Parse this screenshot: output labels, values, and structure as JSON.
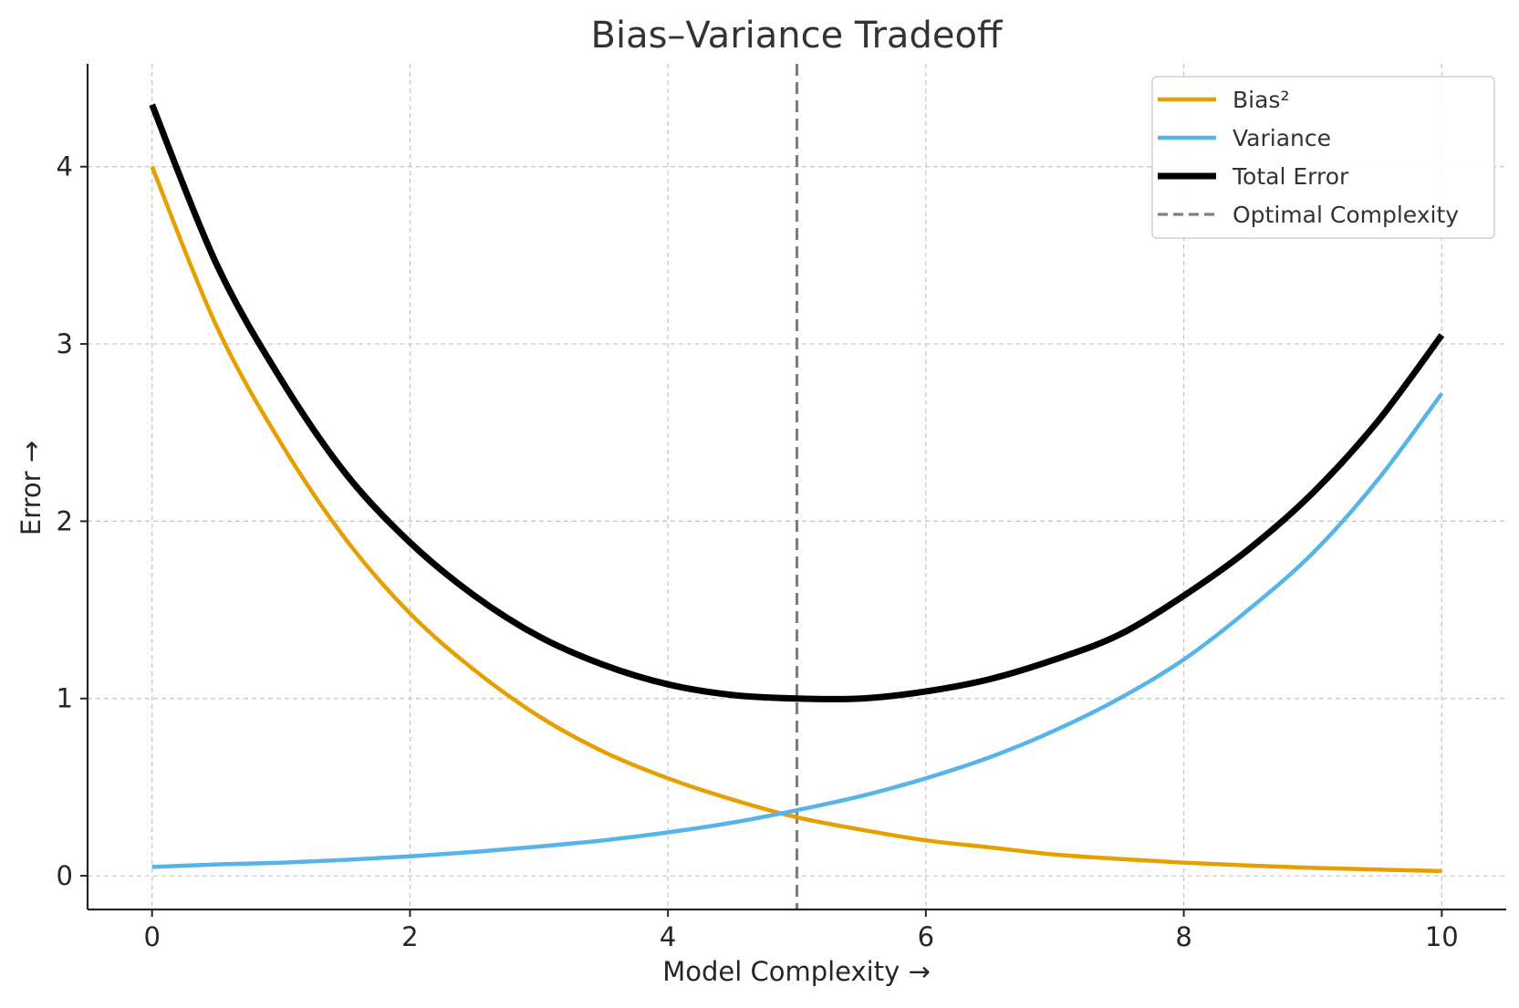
{
  "chart_data": {
    "type": "line",
    "title": "Bias–Variance Tradeoff",
    "xlabel": "Model Complexity →",
    "ylabel": "Error →",
    "xlim": [
      -0.5,
      10.5
    ],
    "ylim": [
      -0.19,
      4.58
    ],
    "xticks": [
      0,
      2,
      4,
      6,
      8,
      10
    ],
    "yticks": [
      0,
      1,
      2,
      3,
      4
    ],
    "grid": true,
    "legend_position": "top-right",
    "x": [
      0,
      0.5,
      1,
      1.5,
      2,
      2.5,
      3,
      3.5,
      4,
      4.5,
      5,
      5.5,
      6,
      6.5,
      7,
      7.5,
      8,
      8.5,
      9,
      9.5,
      10
    ],
    "series": [
      {
        "name": "Bias²",
        "color": "#E69F00",
        "width": 4.5,
        "values": [
          4.0,
          3.1,
          2.44,
          1.9,
          1.48,
          1.16,
          0.9,
          0.7,
          0.55,
          0.43,
          0.33,
          0.26,
          0.2,
          0.16,
          0.12,
          0.095,
          0.074,
          0.058,
          0.045,
          0.035,
          0.027
        ]
      },
      {
        "name": "Variance",
        "color": "#56B4E9",
        "width": 4.5,
        "values": [
          0.05,
          0.064,
          0.074,
          0.09,
          0.11,
          0.135,
          0.165,
          0.2,
          0.245,
          0.3,
          0.37,
          0.45,
          0.55,
          0.67,
          0.82,
          1.0,
          1.22,
          1.5,
          1.82,
          2.23,
          2.72
        ]
      },
      {
        "name": "Total Error",
        "color": "#000000",
        "width": 7,
        "values": [
          4.35,
          3.45,
          2.8,
          2.27,
          1.88,
          1.58,
          1.35,
          1.19,
          1.08,
          1.02,
          1.0,
          1.0,
          1.04,
          1.11,
          1.22,
          1.36,
          1.58,
          1.84,
          2.16,
          2.56,
          3.05
        ]
      }
    ],
    "vline": {
      "name": "Optimal Complexity",
      "x": 5,
      "color": "#7f7f7f",
      "style": "dashed"
    }
  }
}
